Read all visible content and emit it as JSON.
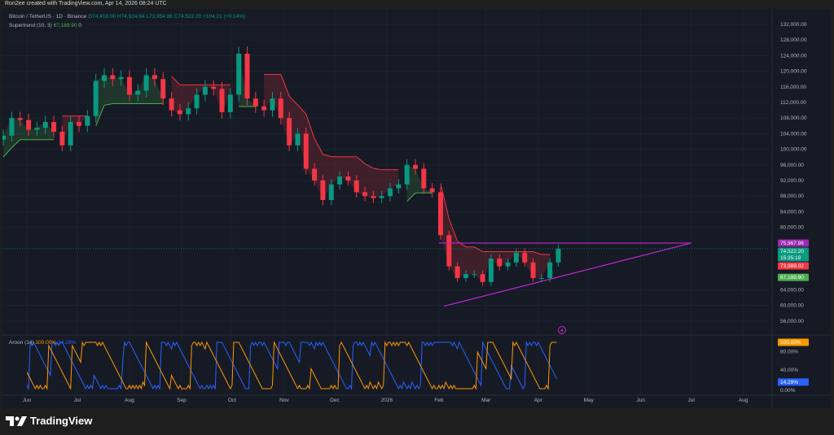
{
  "credit": "Ron2ee created with TradingView.com, Apr 14, 2026 08:24 UTC",
  "legend": {
    "symbol": "Bitcoin / TetherUS · 1D · Binance",
    "o": "O74,418.00",
    "h": "H74,924.64",
    "l": "L73,954.86",
    "c": "C74,522.20",
    "chg": "+104.21 (+0.14%)",
    "supertrend_label": "Supertrend (10, 3)",
    "supertrend_value": "67,189.90",
    "supertrend_extra": "0",
    "aroon_label": "Aroon (14)",
    "aroon_up": "100.00%",
    "aroon_down": "14.29%"
  },
  "brand": "TradingView",
  "colors": {
    "up": "#089981",
    "down": "#f23645",
    "supertrend_up": "#4caf50",
    "supertrend_down": "#f23645",
    "triangle": "#c026d3",
    "aroon_up": "#ff9800",
    "aroon_down": "#2962ff",
    "background": "#161a25"
  },
  "chart_data": {
    "type": "candlestick",
    "symbol": "BTCUSDT",
    "scale": "linear",
    "ylim": [
      52000,
      133000
    ],
    "price_ticks": [
      "132,000.00",
      "128,000.00",
      "124,000.00",
      "120,000.00",
      "116,000.00",
      "112,000.00",
      "108,000.00",
      "104,000.00",
      "100,000.00",
      "96,000.00",
      "92,000.00",
      "88,000.00",
      "84,000.00",
      "80,000.00",
      "64,000.00",
      "60,000.00",
      "56,000.00"
    ],
    "price_tick_values": [
      132000,
      128000,
      124000,
      120000,
      116000,
      112000,
      108000,
      104000,
      100000,
      96000,
      92000,
      88000,
      84000,
      80000,
      64000,
      60000,
      56000
    ],
    "time_ticks": [
      {
        "label": "Jun",
        "date": "2025-06-01"
      },
      {
        "label": "Jul",
        "date": "2025-07-01"
      },
      {
        "label": "Aug",
        "date": "2025-08-01"
      },
      {
        "label": "Sep",
        "date": "2025-09-01"
      },
      {
        "label": "Oct",
        "date": "2025-10-01"
      },
      {
        "label": "Nov",
        "date": "2025-11-01"
      },
      {
        "label": "Dec",
        "date": "2025-12-01"
      },
      {
        "label": "2026",
        "date": "2026-01-01"
      },
      {
        "label": "Feb",
        "date": "2026-02-01"
      },
      {
        "label": "Mar",
        "date": "2026-03-01"
      },
      {
        "label": "Apr",
        "date": "2026-04-01"
      },
      {
        "label": "May",
        "date": "2026-05-01"
      },
      {
        "label": "Jun",
        "date": "2026-06-01"
      },
      {
        "label": "Jul",
        "date": "2026-07-01"
      },
      {
        "label": "Aug",
        "date": "2026-08-01"
      }
    ],
    "start_date": "2025-05-18",
    "step_days": 5,
    "closes": [
      103500,
      108000,
      107500,
      105000,
      105500,
      107000,
      104500,
      101000,
      107000,
      106000,
      108500,
      117500,
      119000,
      118000,
      118500,
      114000,
      115000,
      119000,
      118000,
      113000,
      110000,
      109000,
      110500,
      114000,
      116000,
      115500,
      109500,
      114000,
      124500,
      113000,
      111000,
      110000,
      113000,
      108000,
      101000,
      104000,
      95000,
      92000,
      87000,
      91000,
      93000,
      92000,
      89000,
      88000,
      87500,
      88000,
      90000,
      91000,
      96000,
      95000,
      90000,
      89000,
      78000,
      70000,
      67000,
      68000,
      68000,
      66000,
      72000,
      70000,
      71000,
      73500,
      71000,
      67000,
      67000,
      71000,
      74522
    ],
    "price_tags": [
      {
        "label": "75,967.98",
        "value": 75967.98,
        "color": "#9c27b0"
      },
      {
        "label": "74,522.20",
        "value": 74522.2,
        "sub": "15:35:19",
        "color": "#089981"
      },
      {
        "label": "73,989.02",
        "value": 73989.02,
        "color": "#f23645"
      },
      {
        "label": "67,189.90",
        "value": 67189.9,
        "color": "#4caf50"
      }
    ],
    "triangle": {
      "resistance": {
        "from": [
          "2026-02-01",
          75967.98
        ],
        "to": [
          "2026-07-01",
          75967.98
        ]
      },
      "support": {
        "from": [
          "2026-02-04",
          59800
        ],
        "to": [
          "2026-07-01",
          75967.98
        ]
      }
    },
    "aroon": {
      "period": 14,
      "up": 100.0,
      "down": 14.29,
      "ticks": [
        {
          "label": "80.00%",
          "value": 80
        },
        {
          "label": "40.00%",
          "value": 40
        },
        {
          "label": "0.00%",
          "value": 0
        }
      ],
      "tags": [
        {
          "label": "100.00%",
          "value": 100,
          "color": "#ff9800"
        },
        {
          "label": "14.29%",
          "value": 14.29,
          "color": "#2962ff"
        }
      ]
    }
  }
}
